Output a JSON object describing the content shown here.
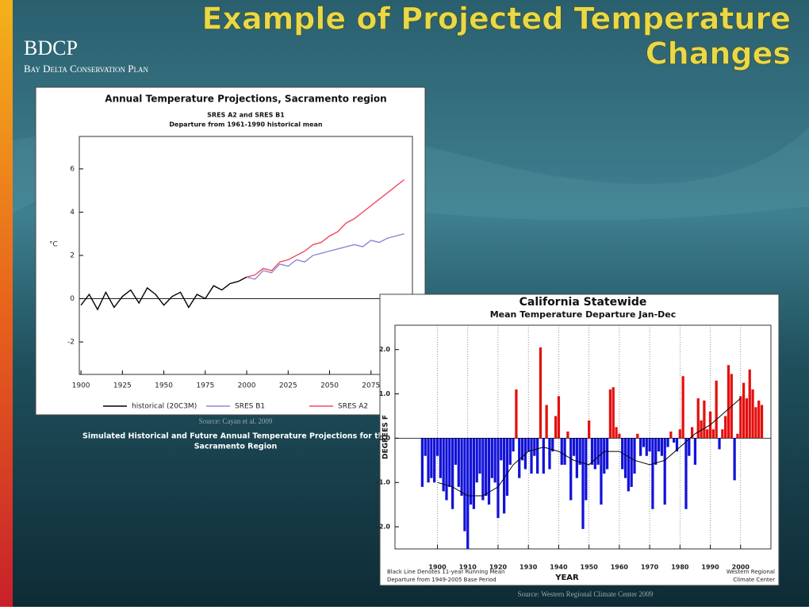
{
  "header": {
    "title_lines": [
      "Example of Projected Temperature",
      "Changes"
    ],
    "logo": "BDCP",
    "logo_subtitle": "Bay Delta Conservation Plan"
  },
  "captions": {
    "source_left": "Source: Cayan et al. 2009",
    "caption_lines": [
      "Simulated Historical and Future Annual Temperature Projections for the",
      "Sacramento Region"
    ],
    "source_right": "Source: Western Regional Climate Center 2009"
  },
  "chart_data": [
    {
      "type": "line",
      "title": "Annual Temperature Projections, Sacramento region",
      "subtitles": [
        "SRES A2 and SRES B1",
        "Departure from 1961-1990 historical mean"
      ],
      "y_label": "°C",
      "x": [
        1900,
        1905,
        1910,
        1915,
        1920,
        1925,
        1930,
        1935,
        1940,
        1945,
        1950,
        1955,
        1960,
        1965,
        1970,
        1975,
        1980,
        1985,
        1990,
        1995,
        2000,
        2005,
        2010,
        2015,
        2020,
        2025,
        2030,
        2035,
        2040,
        2045,
        2050,
        2055,
        2060,
        2065,
        2070,
        2075,
        2080,
        2085,
        2090,
        2095
      ],
      "series": [
        {
          "name": "historical (20C3M)",
          "color": "#000000",
          "values": [
            -0.3,
            0.2,
            -0.5,
            0.3,
            -0.4,
            0.1,
            0.4,
            -0.2,
            0.5,
            0.2,
            -0.3,
            0.1,
            0.3,
            -0.4,
            0.2,
            0.0,
            0.6,
            0.4,
            0.7,
            0.8,
            1.0,
            null,
            null,
            null,
            null,
            null,
            null,
            null,
            null,
            null,
            null,
            null,
            null,
            null,
            null,
            null,
            null,
            null,
            null,
            null
          ]
        },
        {
          "name": "SRES B1",
          "color": "#8a8ad6",
          "values": [
            null,
            null,
            null,
            null,
            null,
            null,
            null,
            null,
            null,
            null,
            null,
            null,
            null,
            null,
            null,
            null,
            null,
            null,
            null,
            null,
            1.0,
            0.9,
            1.3,
            1.2,
            1.6,
            1.5,
            1.8,
            1.7,
            2.0,
            2.1,
            2.2,
            2.3,
            2.4,
            2.5,
            2.4,
            2.7,
            2.6,
            2.8,
            2.9,
            3.0
          ]
        },
        {
          "name": "SRES A2",
          "color": "#f24a62",
          "values": [
            null,
            null,
            null,
            null,
            null,
            null,
            null,
            null,
            null,
            null,
            null,
            null,
            null,
            null,
            null,
            null,
            null,
            null,
            null,
            null,
            1.0,
            1.1,
            1.4,
            1.3,
            1.7,
            1.8,
            2.0,
            2.2,
            2.5,
            2.6,
            2.9,
            3.1,
            3.5,
            3.7,
            4.0,
            4.3,
            4.6,
            4.9,
            5.2,
            5.5
          ]
        }
      ],
      "xlim": [
        1899,
        2100
      ],
      "xticks": [
        1900,
        1925,
        1950,
        1975,
        2000,
        2025,
        2050,
        2075
      ],
      "ylim": [
        -3.5,
        7.5
      ],
      "yticks": [
        -2,
        0,
        2,
        4,
        6
      ],
      "reference_line": 0
    },
    {
      "type": "bar",
      "title": "California Statewide",
      "subtitles": [
        "Mean Temperature Departure Jan-Dec"
      ],
      "y_label": "DEGREES F",
      "x_label": "YEAR",
      "notes_left": [
        "Black Line Denotes 11-year Running Mean",
        "Departure from 1949-2005 Base Period"
      ],
      "notes_right": [
        "Western Regional",
        "Climate Center"
      ],
      "x": [
        1895,
        1896,
        1897,
        1898,
        1899,
        1900,
        1901,
        1902,
        1903,
        1904,
        1905,
        1906,
        1907,
        1908,
        1909,
        1910,
        1911,
        1912,
        1913,
        1914,
        1915,
        1916,
        1917,
        1918,
        1919,
        1920,
        1921,
        1922,
        1923,
        1924,
        1925,
        1926,
        1927,
        1928,
        1929,
        1930,
        1931,
        1932,
        1933,
        1934,
        1935,
        1936,
        1937,
        1938,
        1939,
        1940,
        1941,
        1942,
        1943,
        1944,
        1945,
        1946,
        1947,
        1948,
        1949,
        1950,
        1951,
        1952,
        1953,
        1954,
        1955,
        1956,
        1957,
        1958,
        1959,
        1960,
        1961,
        1962,
        1963,
        1964,
        1965,
        1966,
        1967,
        1968,
        1969,
        1970,
        1971,
        1972,
        1973,
        1974,
        1975,
        1976,
        1977,
        1978,
        1979,
        1980,
        1981,
        1982,
        1983,
        1984,
        1985,
        1986,
        1987,
        1988,
        1989,
        1990,
        1991,
        1992,
        1993,
        1994,
        1995,
        1996,
        1997,
        1998,
        1999,
        2000,
        2001,
        2002,
        2003,
        2004,
        2005,
        2006,
        2007
      ],
      "values": [
        -1.1,
        -0.4,
        -1.0,
        -0.9,
        -1.0,
        -0.4,
        -0.9,
        -1.2,
        -1.4,
        -1.1,
        -1.6,
        -0.6,
        -1.1,
        -1.3,
        -2.1,
        -2.5,
        -1.5,
        -1.6,
        -1.0,
        -0.8,
        -1.4,
        -1.3,
        -1.5,
        -0.9,
        -1.0,
        -1.8,
        -0.5,
        -1.7,
        -1.3,
        -0.6,
        -0.3,
        1.1,
        -0.9,
        -0.5,
        -0.7,
        -0.3,
        -0.8,
        -0.4,
        -0.8,
        2.05,
        -0.8,
        0.75,
        -0.7,
        -0.3,
        0.5,
        0.95,
        -0.6,
        -0.6,
        0.15,
        -1.4,
        -0.4,
        -0.9,
        -0.6,
        -2.05,
        -1.4,
        0.4,
        -0.6,
        -0.7,
        -0.6,
        -1.5,
        -0.8,
        -0.7,
        1.1,
        1.15,
        0.25,
        0.1,
        -0.7,
        -0.9,
        -1.2,
        -1.1,
        -0.8,
        0.1,
        -0.4,
        -0.2,
        -0.4,
        -0.3,
        -1.6,
        -0.6,
        -0.3,
        -0.4,
        -1.5,
        -0.2,
        0.15,
        -0.1,
        -0.3,
        0.2,
        1.4,
        -1.6,
        -0.4,
        0.25,
        -0.6,
        0.9,
        0.4,
        0.85,
        0.2,
        0.6,
        0.2,
        1.3,
        -0.25,
        0.2,
        0.5,
        1.65,
        1.45,
        -0.95,
        0.1,
        0.95,
        1.25,
        0.9,
        1.55,
        1.1,
        0.7,
        0.85,
        0.75
      ],
      "positive_color": "#e3100e",
      "negative_color": "#1212d8",
      "running_mean": {
        "color": "#000000",
        "x": [
          1900,
          1905,
          1910,
          1915,
          1920,
          1925,
          1930,
          1935,
          1940,
          1945,
          1950,
          1955,
          1960,
          1965,
          1970,
          1975,
          1980,
          1985,
          1990,
          1995,
          2000
        ],
        "values": [
          -1.0,
          -1.1,
          -1.3,
          -1.3,
          -1.1,
          -0.6,
          -0.3,
          -0.2,
          -0.3,
          -0.5,
          -0.6,
          -0.3,
          -0.3,
          -0.5,
          -0.6,
          -0.5,
          -0.2,
          0.1,
          0.3,
          0.6,
          0.9
        ]
      },
      "xlim": [
        1886,
        2010
      ],
      "xticks": [
        1900,
        1910,
        1920,
        1930,
        1940,
        1950,
        1960,
        1970,
        1980,
        1990,
        2000
      ],
      "ylim": [
        -2.5,
        2.55
      ],
      "yticks": [
        {
          "value": -2,
          "label": "-2.0"
        },
        {
          "value": -1,
          "label": "-1.0"
        },
        {
          "value": 0,
          "label": "0.0"
        },
        {
          "value": 1,
          "label": "1.0"
        },
        {
          "value": 2,
          "label": "2.0"
        }
      ],
      "reference_line": 0,
      "grid": true
    }
  ]
}
